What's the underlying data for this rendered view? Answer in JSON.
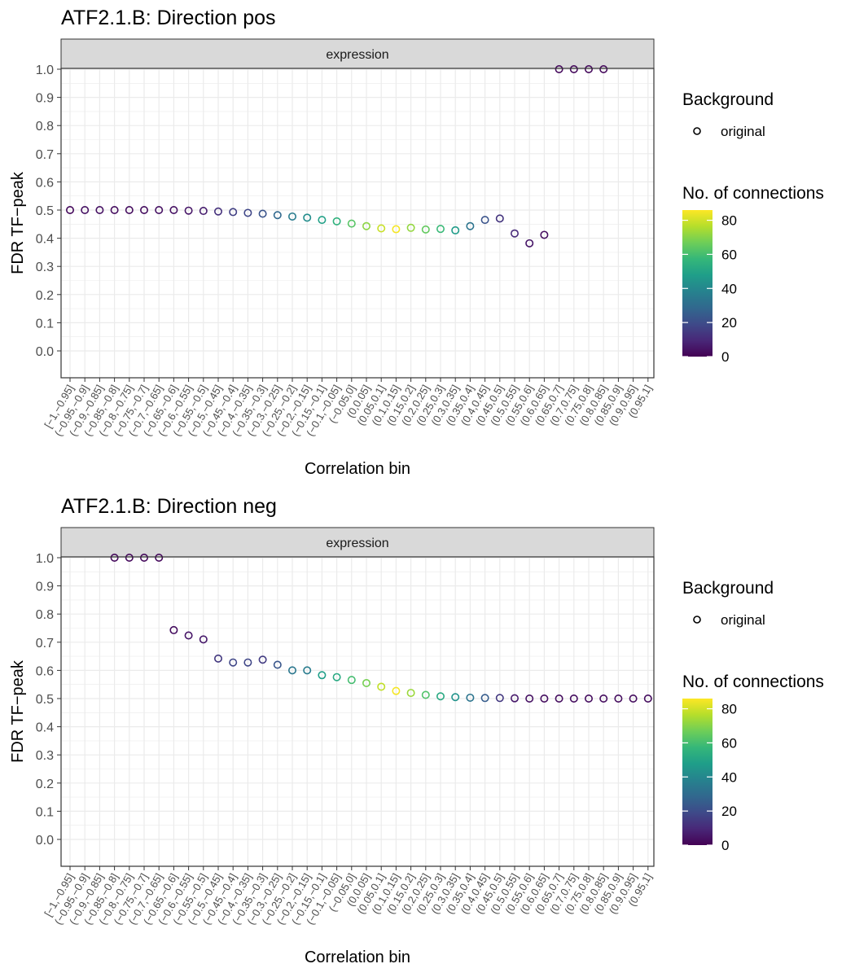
{
  "chart_data": [
    {
      "type": "scatter",
      "title": "ATF2.1.B: Direction pos",
      "facet": "expression",
      "xlabel": "Correlation bin",
      "ylabel": "FDR TF−peak",
      "ylim": [
        0,
        1
      ],
      "yticks": [
        "0.0",
        "0.1",
        "0.2",
        "0.3",
        "0.4",
        "0.5",
        "0.6",
        "0.7",
        "0.8",
        "0.9",
        "1.0"
      ],
      "categories": [
        "[−1,−0.95]",
        "(−0.95,−0.9]",
        "(−0.9,−0.85]",
        "(−0.85,−0.8]",
        "(−0.8,−0.75]",
        "(−0.75,−0.7]",
        "(−0.7,−0.65]",
        "(−0.65,−0.6]",
        "(−0.6,−0.55]",
        "(−0.55,−0.5]",
        "(−0.5,−0.45]",
        "(−0.45,−0.4]",
        "(−0.4,−0.35]",
        "(−0.35,−0.3]",
        "(−0.3,−0.25]",
        "(−0.25,−0.2]",
        "(−0.2,−0.15]",
        "(−0.15,−0.1]",
        "(−0.1,−0.05]",
        "(−0.05,0]",
        "(0,0.05]",
        "(0.05,0.1]",
        "(0.1,0.15]",
        "(0.15,0.2]",
        "(0.2,0.25]",
        "(0.25,0.3]",
        "(0.3,0.35]",
        "(0.35,0.4]",
        "(0.4,0.45]",
        "(0.45,0.5]",
        "(0.5,0.55]",
        "(0.55,0.6]",
        "(0.6,0.65]",
        "(0.65,0.7]",
        "(0.7,0.75]",
        "(0.75,0.8]",
        "(0.8,0.85]",
        "(0.85,0.9]",
        "(0.9,0.95]",
        "(0.95,1]"
      ],
      "values": [
        0.5,
        0.5,
        0.5,
        0.5,
        0.5,
        0.5,
        0.5,
        0.5,
        0.498,
        0.497,
        0.495,
        0.493,
        0.49,
        0.487,
        0.482,
        0.477,
        0.473,
        0.465,
        0.46,
        0.452,
        0.443,
        0.435,
        0.432,
        0.437,
        0.431,
        0.433,
        0.428,
        0.443,
        0.465,
        0.47,
        0.417,
        0.382,
        0.412,
        1.0,
        1.0,
        1.0,
        1.0,
        null,
        null,
        null
      ],
      "connections": [
        2,
        4,
        4,
        3,
        3,
        3,
        4,
        4,
        5,
        7,
        12,
        16,
        18,
        22,
        29,
        36,
        42,
        49,
        55,
        63,
        71,
        79,
        85,
        72,
        65,
        58,
        47,
        33,
        22,
        13,
        10,
        5,
        3,
        2,
        2,
        2,
        2,
        null,
        null,
        null
      ]
    },
    {
      "type": "scatter",
      "title": "ATF2.1.B: Direction neg",
      "facet": "expression",
      "xlabel": "Correlation bin",
      "ylabel": "FDR TF−peak",
      "ylim": [
        0,
        1
      ],
      "yticks": [
        "0.0",
        "0.1",
        "0.2",
        "0.3",
        "0.4",
        "0.5",
        "0.6",
        "0.7",
        "0.8",
        "0.9",
        "1.0"
      ],
      "categories": [
        "[−1,−0.95]",
        "(−0.95,−0.9]",
        "(−0.9,−0.85]",
        "(−0.85,−0.8]",
        "(−0.8,−0.75]",
        "(−0.75,−0.7]",
        "(−0.7,−0.65]",
        "(−0.65,−0.6]",
        "(−0.6,−0.55]",
        "(−0.55,−0.5]",
        "(−0.5,−0.45]",
        "(−0.45,−0.4]",
        "(−0.4,−0.35]",
        "(−0.35,−0.3]",
        "(−0.3,−0.25]",
        "(−0.25,−0.2]",
        "(−0.2,−0.15]",
        "(−0.15,−0.1]",
        "(−0.1,−0.05]",
        "(−0.05,0]",
        "(0,0.05]",
        "(0.05,0.1]",
        "(0.1,0.15]",
        "(0.15,0.2]",
        "(0.2,0.25]",
        "(0.25,0.3]",
        "(0.3,0.35]",
        "(0.35,0.4]",
        "(0.4,0.45]",
        "(0.45,0.5]",
        "(0.5,0.55]",
        "(0.55,0.6]",
        "(0.6,0.65]",
        "(0.65,0.7]",
        "(0.7,0.75]",
        "(0.75,0.8]",
        "(0.8,0.85]",
        "(0.85,0.9]",
        "(0.9,0.95]",
        "(0.95,1]"
      ],
      "values": [
        null,
        null,
        null,
        1.0,
        1.0,
        1.0,
        1.0,
        0.743,
        0.724,
        0.71,
        0.642,
        0.628,
        0.628,
        0.638,
        0.62,
        0.6,
        0.6,
        0.583,
        0.576,
        0.566,
        0.555,
        0.542,
        0.527,
        0.52,
        0.513,
        0.508,
        0.505,
        0.503,
        0.502,
        0.502,
        0.501,
        0.5,
        0.5,
        0.5,
        0.5,
        0.5,
        0.5,
        0.5,
        0.5,
        0.5
      ],
      "connections": [
        null,
        null,
        null,
        2,
        2,
        2,
        2,
        3,
        5,
        6,
        14,
        18,
        18,
        15,
        23,
        34,
        36,
        48,
        52,
        60,
        68,
        78,
        85,
        73,
        62,
        52,
        44,
        33,
        25,
        14,
        6,
        4,
        3,
        3,
        3,
        3,
        3,
        3,
        3,
        3
      ]
    }
  ],
  "legend": {
    "background_title": "Background",
    "background_label": "original",
    "connections_title": "No. of connections",
    "color_ticks": [
      "0",
      "20",
      "40",
      "60",
      "80"
    ],
    "color_tick_values": [
      0,
      20,
      40,
      60,
      80
    ],
    "color_max": 86
  },
  "colors": {
    "panel_border": "#333333",
    "grid": "#ebebeb",
    "strip_fill": "#d9d9d9",
    "tick_text": "#4d4d4d",
    "viridis": [
      "#440154",
      "#482878",
      "#3e4a89",
      "#31688e",
      "#26828e",
      "#1f9e89",
      "#35b779",
      "#6ece58",
      "#b5de2b",
      "#fde725"
    ]
  }
}
